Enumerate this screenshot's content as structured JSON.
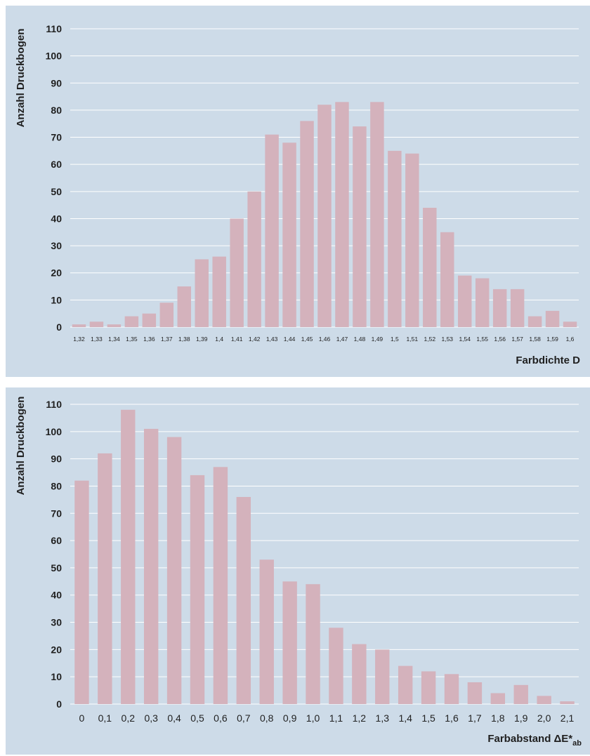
{
  "colors": {
    "panel_bg": "#cddbe8",
    "bar": "#d4b2bc",
    "grid": "#ffffff",
    "text": "#1f1f1f"
  },
  "chart_data": [
    {
      "type": "bar",
      "title": "",
      "ylabel": "Anzahl Druckbogen",
      "xlabel": "Farbdichte D",
      "ylim": [
        0,
        110
      ],
      "yticks": [
        "0",
        "10",
        "20",
        "30",
        "40",
        "50",
        "60",
        "70",
        "80",
        "90",
        "100",
        "110"
      ],
      "grid": true,
      "categories": [
        "1,32",
        "1,33",
        "1,34",
        "1,35",
        "1,36",
        "1,37",
        "1,38",
        "1,39",
        "1,4",
        "1,41",
        "1,42",
        "1,43",
        "1,44",
        "1,45",
        "1,46",
        "1,47",
        "1,48",
        "1,49",
        "1,5",
        "1,51",
        "1,52",
        "1,53",
        "1,54",
        "1,55",
        "1,56",
        "1,57",
        "1,58",
        "1,59",
        "1,6"
      ],
      "values": [
        1,
        2,
        1,
        4,
        5,
        9,
        15,
        25,
        26,
        40,
        50,
        71,
        68,
        76,
        82,
        83,
        74,
        83,
        65,
        64,
        44,
        35,
        19,
        18,
        14,
        14,
        4,
        6,
        2
      ]
    },
    {
      "type": "bar",
      "title": "",
      "ylabel": "Anzahl Druckbogen",
      "xlabel": "Farbabstand ΔE*",
      "xlabel_sub": "ab",
      "ylim": [
        0,
        110
      ],
      "yticks": [
        "0",
        "10",
        "20",
        "30",
        "40",
        "50",
        "60",
        "70",
        "80",
        "90",
        "100",
        "110"
      ],
      "grid": true,
      "categories": [
        "0",
        "0,1",
        "0,2",
        "0,3",
        "0,4",
        "0,5",
        "0,6",
        "0,7",
        "0,8",
        "0,9",
        "1,0",
        "1,1",
        "1,2",
        "1,3",
        "1,4",
        "1,5",
        "1,6",
        "1,7",
        "1,8",
        "1,9",
        "2,0",
        "2,1"
      ],
      "values": [
        82,
        92,
        108,
        101,
        98,
        84,
        87,
        76,
        53,
        45,
        44,
        28,
        22,
        20,
        14,
        12,
        11,
        8,
        4,
        7,
        3,
        1
      ]
    }
  ]
}
